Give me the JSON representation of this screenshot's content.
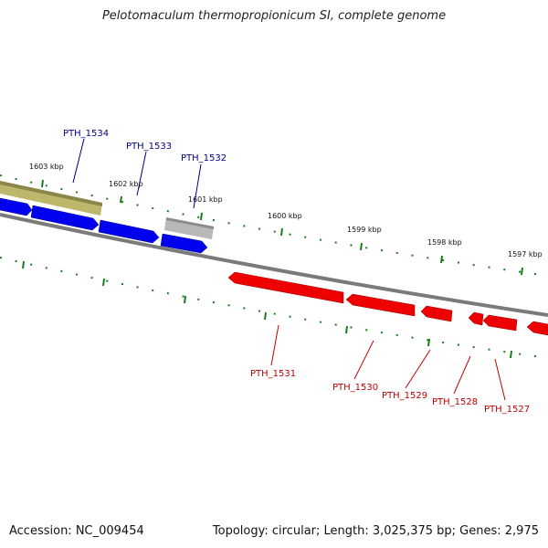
{
  "title": "Pelotomaculum thermopropionicum SI, complete genome",
  "accession_text": "Accession: NC_009454",
  "summary_text": "Topology: circular; Length: 3,025,375 bp; Genes: 2,975",
  "colors": {
    "forward_gene": "#0000ff",
    "reverse_gene": "#ff0000",
    "tick": "#1a7a1a",
    "backbone": "#808080",
    "olive_feature": "#bdb76b",
    "gray_feature": "#b0b0b0",
    "forward_label": "#00008b",
    "reverse_label": "#c00000"
  },
  "kbp_labels": [
    "1603 kbp",
    "1602 kbp",
    "1601 kbp",
    "1600 kbp",
    "1599 kbp",
    "1598 kbp",
    "1597 kbp"
  ],
  "forward_genes": [
    {
      "name": "PTH_1534"
    },
    {
      "name": "PTH_1533"
    },
    {
      "name": "PTH_1532"
    }
  ],
  "reverse_genes": [
    {
      "name": "PTH_1531"
    },
    {
      "name": "PTH_1530"
    },
    {
      "name": "PTH_1529"
    },
    {
      "name": "PTH_1528"
    },
    {
      "name": "PTH_1527"
    }
  ]
}
